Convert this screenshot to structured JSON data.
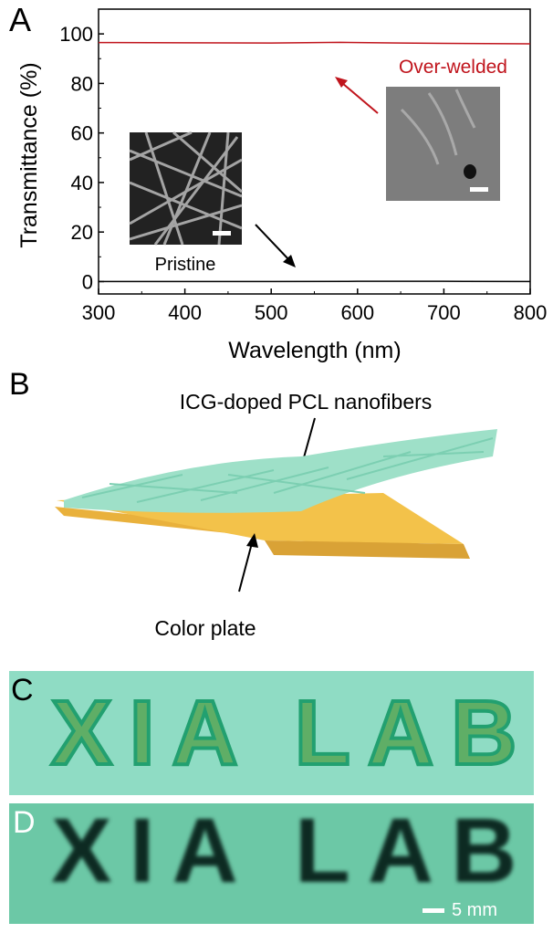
{
  "panels": {
    "a": {
      "letter": "A"
    },
    "b": {
      "letter": "B",
      "fiber_label": "ICG-doped PCL nanofibers",
      "plate_label": "Color plate"
    },
    "c": {
      "letter": "C",
      "text": "XIA LAB"
    },
    "d": {
      "letter": "D",
      "text": "XIA LAB",
      "scale_label": "5 mm"
    }
  },
  "colors": {
    "over_welded": "#c0141c",
    "pristine": "#000000",
    "fibers": "#9ee0c8",
    "plate": "#f3c24a",
    "photo_bg": "#8fdcc4",
    "photo_d_bg": "#6cc8a6"
  },
  "chart_data": {
    "type": "line",
    "xlabel": "Wavelength (nm)",
    "ylabel": "Transmittance (%)",
    "xlim": [
      300,
      800
    ],
    "ylim": [
      -5,
      110
    ],
    "xticks": [
      300,
      400,
      500,
      600,
      700,
      800
    ],
    "yticks": [
      0,
      20,
      40,
      60,
      80,
      100
    ],
    "grid": false,
    "series": [
      {
        "name": "Over-welded",
        "color": "#c0141c",
        "x": [
          300,
          400,
          500,
          580,
          650,
          700,
          750,
          800
        ],
        "y": [
          96.5,
          96.4,
          96.3,
          96.6,
          96.3,
          96.2,
          96.1,
          96.0
        ]
      },
      {
        "name": "Pristine",
        "color": "#000000",
        "x": [
          300,
          400,
          500,
          600,
          700,
          800
        ],
        "y": [
          0,
          0,
          0,
          0.1,
          0.1,
          0
        ]
      }
    ],
    "annotations": [
      "Over-welded",
      "Pristine"
    ]
  }
}
